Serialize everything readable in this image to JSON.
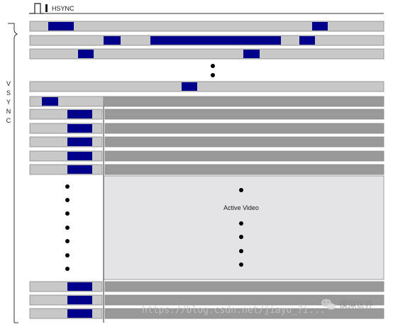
{
  "labels": {
    "hsync": "HSYNC",
    "vsync_letters": [
      "V",
      "S",
      "Y",
      "N",
      "C"
    ],
    "active_video": "Active Video"
  },
  "watermark": {
    "url": "https://blog.csdn.net/jiayu_?i...",
    "brand": "模拟世界"
  },
  "colors": {
    "line_fill": "#c8c8c8",
    "line_border": "#888888",
    "sync_pulse": "#00008b",
    "active_line": "#999999",
    "active_area": "#e4e4e6",
    "dot": "#000000"
  },
  "icons": {
    "hsync_pulse": "pulse-waveform-icon",
    "brand_logo": "wechat-icon"
  }
}
